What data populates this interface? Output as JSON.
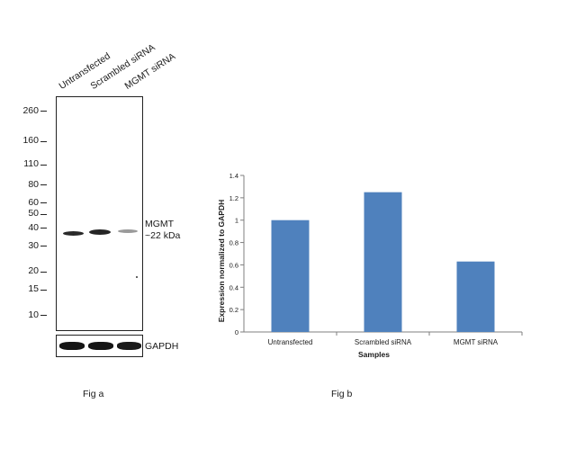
{
  "fig_a": {
    "lane_labels": [
      "Untransfected",
      "Scrambled siRNA",
      "MGMT  siRNA"
    ],
    "mw_markers": [
      {
        "label": "260",
        "kda": 260
      },
      {
        "label": "160",
        "kda": 160
      },
      {
        "label": "110",
        "kda": 110
      },
      {
        "label": "80",
        "kda": 80
      },
      {
        "label": "60",
        "kda": 60
      },
      {
        "label": "50",
        "kda": 50
      },
      {
        "label": "40",
        "kda": 40
      },
      {
        "label": "30",
        "kda": 30
      },
      {
        "label": "20",
        "kda": 20
      },
      {
        "label": "15",
        "kda": 15
      },
      {
        "label": "10",
        "kda": 10
      }
    ],
    "band_label_line1": "MGMT",
    "band_label_line2": "~22 kDa",
    "gapdh_label": "GAPDH",
    "caption": "Fig a"
  },
  "chart_data": {
    "type": "bar",
    "categories": [
      "Untransfected",
      "Scrambled siRNA",
      "MGMT siRNA"
    ],
    "values": [
      1.0,
      1.25,
      0.63
    ],
    "xlabel": "Samples",
    "ylabel": "Expression normalized to GAPDH",
    "ylim": [
      0,
      1.4
    ],
    "yticks": [
      "0",
      "0.2",
      "0.4",
      "0.6",
      "0.8",
      "1",
      "1.2",
      "1.4"
    ],
    "bar_color": "#4f81bd",
    "grid": false,
    "caption": "Fig b"
  }
}
